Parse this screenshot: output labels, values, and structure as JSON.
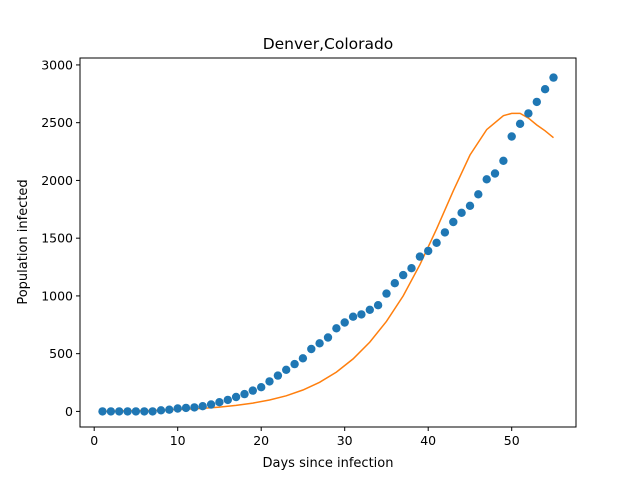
{
  "chart_data": {
    "type": "scatter",
    "title": "Denver,Colorado",
    "xlabel": "Days since infection",
    "ylabel": "Population infected",
    "xlim": [
      -1.7,
      57.7
    ],
    "ylim": [
      -135,
      3060
    ],
    "x_ticks": [
      0,
      10,
      20,
      30,
      40,
      50
    ],
    "y_ticks": [
      0,
      500,
      1000,
      1500,
      2000,
      2500,
      3000
    ],
    "grid": false,
    "colors": {
      "observed": "#1f77b4",
      "model": "#ff7f0e"
    },
    "series": [
      {
        "kind": "scatter",
        "x": [
          1,
          2,
          3,
          4,
          5,
          6,
          7,
          8,
          9,
          10,
          11,
          12,
          13,
          14,
          15,
          16,
          17,
          18,
          19,
          20,
          21,
          22,
          23,
          24,
          25,
          26,
          27,
          28,
          29,
          30,
          31,
          32,
          33,
          34,
          35,
          36,
          37,
          38,
          39,
          40,
          41,
          42,
          43,
          44,
          45,
          46,
          47,
          48,
          49,
          50,
          51,
          52,
          53,
          54,
          55
        ],
        "y": [
          0,
          0,
          0,
          0,
          0,
          0,
          0,
          10,
          15,
          25,
          30,
          35,
          45,
          60,
          80,
          100,
          125,
          150,
          180,
          210,
          260,
          310,
          360,
          410,
          460,
          540,
          590,
          640,
          720,
          770,
          820,
          840,
          880,
          920,
          1020,
          1110,
          1180,
          1240,
          1340,
          1390,
          1460,
          1550,
          1640,
          1720,
          1780,
          1880,
          2010,
          2060,
          2170,
          2380,
          2490,
          2580,
          2680,
          2790,
          2890
        ]
      },
      {
        "kind": "line",
        "x": [
          1,
          3,
          5,
          7,
          9,
          11,
          13,
          15,
          17,
          19,
          21,
          23,
          25,
          27,
          29,
          31,
          33,
          35,
          37,
          39,
          41,
          43,
          45,
          47,
          49,
          50,
          51,
          52,
          53,
          54,
          55
        ],
        "y": [
          2,
          4,
          6,
          9,
          13,
          18,
          26,
          37,
          52,
          72,
          99,
          135,
          185,
          252,
          340,
          455,
          600,
          780,
          1000,
          1270,
          1580,
          1910,
          2220,
          2440,
          2560,
          2580,
          2580,
          2540,
          2480,
          2430,
          2370
        ]
      }
    ]
  }
}
